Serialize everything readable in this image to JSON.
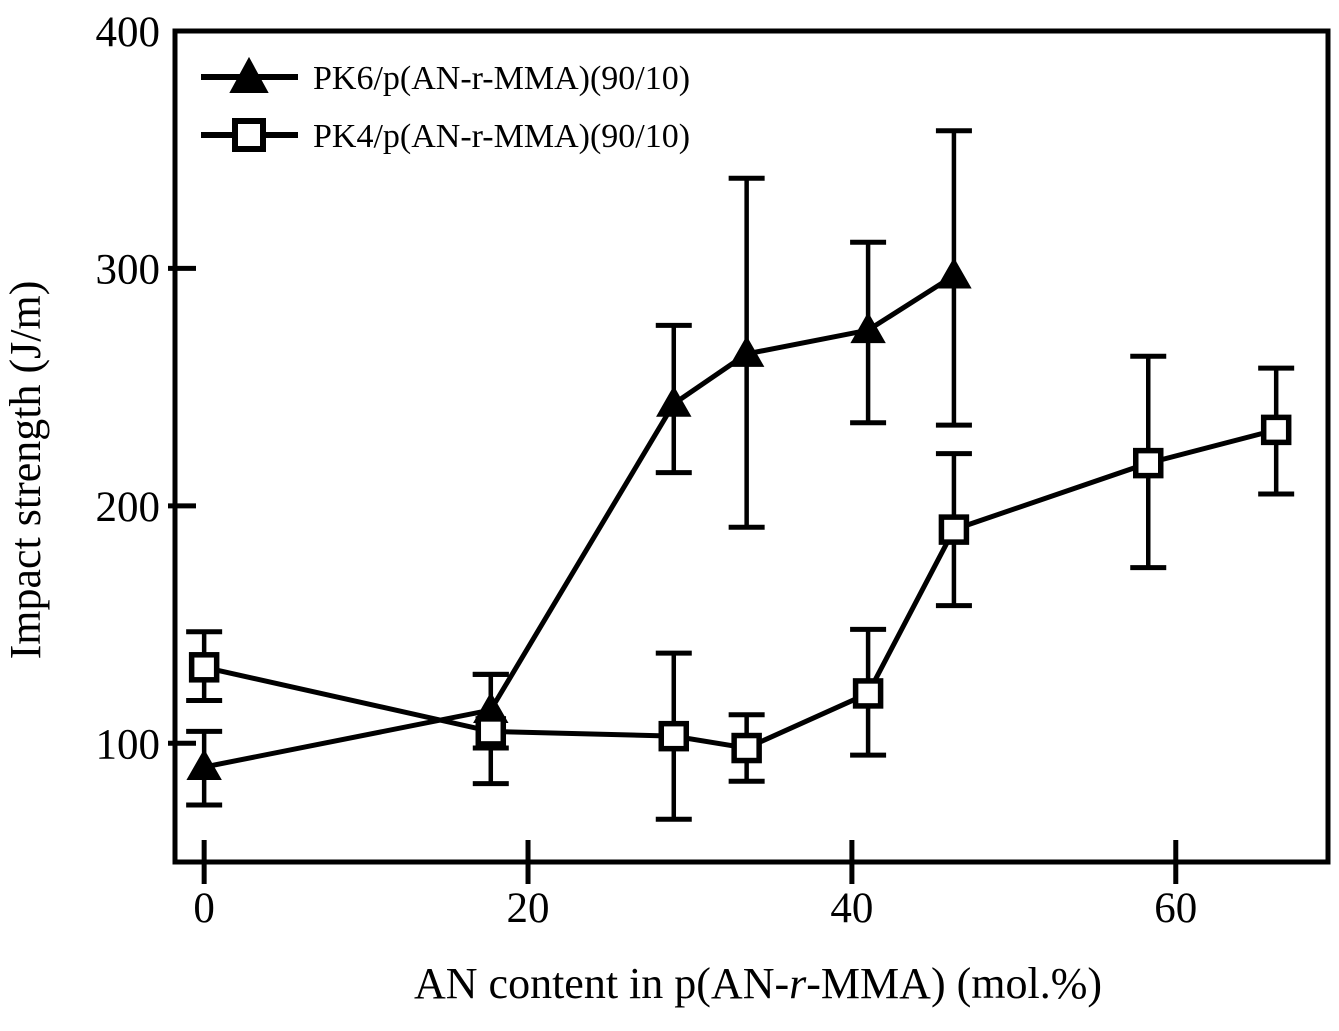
{
  "chart_data": {
    "type": "line",
    "title": "",
    "ylabel": "Impact strength (J/m)",
    "xlabel_parts": [
      "AN content in p(AN-",
      "r",
      "-MMA) (mol.%)"
    ],
    "xlabel_full": "AN content in p(AN-r-MMA) (mol.%)",
    "xlim": [
      -1.8,
      69.4
    ],
    "ylim": [
      50,
      400
    ],
    "xticks": [
      0,
      20,
      40,
      60
    ],
    "yticks": [
      100,
      200,
      300,
      400
    ],
    "grid": false,
    "legend_position": "top-left-inside",
    "colors": {
      "foreground": "#000000",
      "background": "#ffffff"
    },
    "series": [
      {
        "name": "PK6/p(AN-r-MMA)(90/10)",
        "marker": "filled-triangle",
        "points": [
          {
            "x": 0,
            "y": 90,
            "err_lo": 74,
            "err_hi": 105
          },
          {
            "x": 17.7,
            "y": 114,
            "err_lo": 98,
            "err_hi": 129
          },
          {
            "x": 29,
            "y": 243,
            "err_lo": 214,
            "err_hi": 276
          },
          {
            "x": 33.5,
            "y": 264,
            "err_lo": 191,
            "err_hi": 338
          },
          {
            "x": 41,
            "y": 274,
            "err_lo": 235,
            "err_hi": 311
          },
          {
            "x": 46.3,
            "y": 297,
            "err_lo": 234,
            "err_hi": 358
          }
        ]
      },
      {
        "name": "PK4/p(AN-r-MMA)(90/10)",
        "marker": "open-square",
        "points": [
          {
            "x": 0,
            "y": 132,
            "err_lo": 118,
            "err_hi": 147
          },
          {
            "x": 17.7,
            "y": 105,
            "err_lo": 83,
            "err_hi": 129
          },
          {
            "x": 29,
            "y": 103,
            "err_lo": 68,
            "err_hi": 138
          },
          {
            "x": 33.5,
            "y": 98,
            "err_lo": 84,
            "err_hi": 112
          },
          {
            "x": 41,
            "y": 121,
            "err_lo": 95,
            "err_hi": 148
          },
          {
            "x": 46.3,
            "y": 190,
            "err_lo": 158,
            "err_hi": 222
          },
          {
            "x": 58.3,
            "y": 218,
            "err_lo": 174,
            "err_hi": 263
          },
          {
            "x": 66.2,
            "y": 232,
            "err_lo": 205,
            "err_hi": 258
          }
        ]
      }
    ]
  }
}
